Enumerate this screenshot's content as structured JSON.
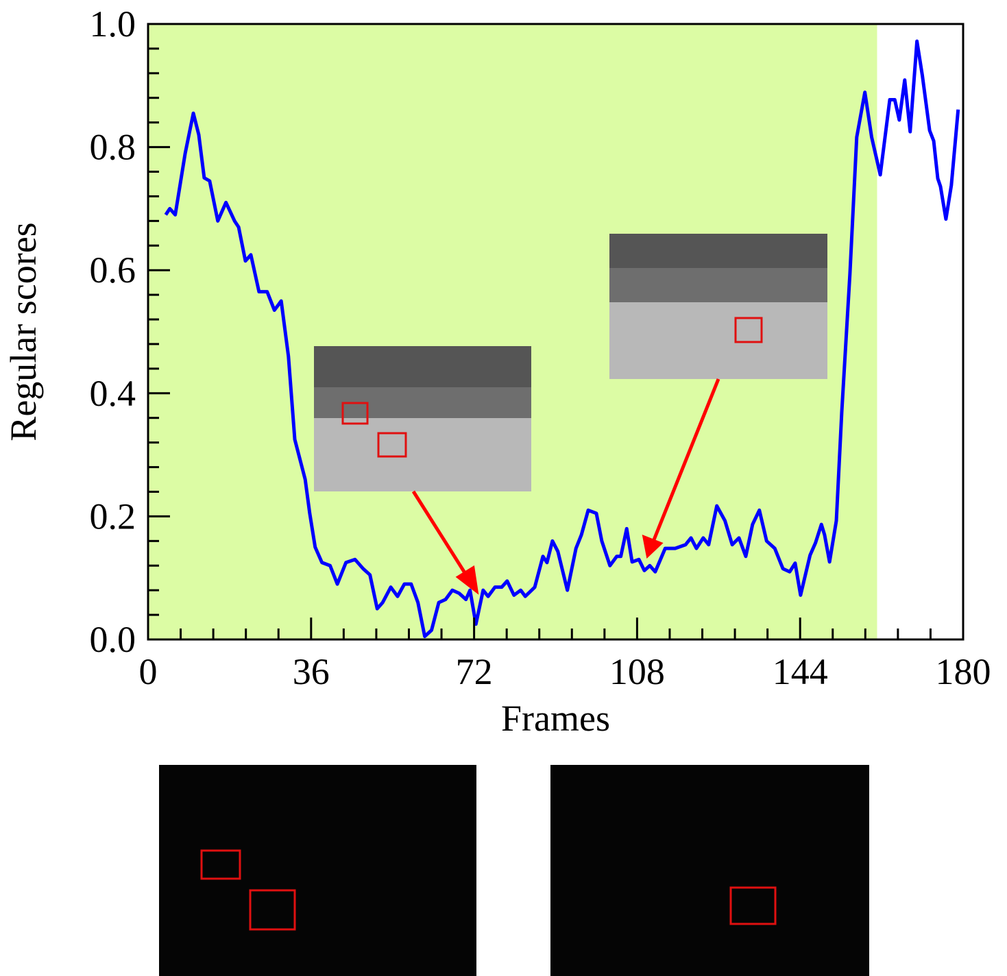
{
  "chart_data": {
    "type": "line",
    "x_label": "Frames",
    "y_label": "Regular scores",
    "x": [
      3.9,
      4.8,
      6,
      8.2,
      10,
      11.2,
      12.4,
      13.6,
      15.4,
      17.2,
      19.1,
      20,
      21.5,
      22.7,
      24.5,
      26.3,
      27.9,
      29.4,
      31,
      32.4,
      34.7,
      35.7,
      36.9,
      38.4,
      40.2,
      41.8,
      43.7,
      45.7,
      47.5,
      49,
      50.6,
      51.8,
      53.6,
      55.1,
      56.6,
      58.1,
      59.6,
      61.1,
      62.6,
      64.2,
      65.7,
      67.2,
      68.7,
      70.2,
      71.1,
      72.4,
      74,
      75.1,
      76.6,
      78.1,
      79.3,
      80.8,
      82.3,
      83.3,
      85.4,
      87.2,
      88.1,
      89.3,
      90.5,
      92.6,
      94.5,
      95.7,
      97.2,
      99,
      100.2,
      102,
      103.5,
      104.4,
      105.7,
      106.9,
      108.4,
      109.6,
      110.8,
      112,
      114.2,
      116.4,
      118.7,
      119.9,
      121.1,
      122.6,
      123.8,
      125.6,
      127.4,
      129,
      130.5,
      132,
      133.5,
      135,
      136.6,
      138.4,
      140.2,
      141.7,
      142.9,
      144.1,
      146.2,
      147.4,
      148.7,
      149.4,
      150.5,
      152,
      153.2,
      155,
      156.5,
      158.3,
      159.8,
      161.7,
      163.8,
      164.9,
      165.9,
      167.1,
      168.3,
      169.8,
      171,
      172.6,
      173.5,
      174.4,
      175,
      176.2,
      177.4,
      178.9
    ],
    "values": [
      0.69,
      0.7,
      0.69,
      0.79,
      0.855,
      0.82,
      0.75,
      0.745,
      0.68,
      0.71,
      0.68,
      0.67,
      0.615,
      0.625,
      0.565,
      0.565,
      0.535,
      0.55,
      0.46,
      0.325,
      0.26,
      0.205,
      0.15,
      0.125,
      0.12,
      0.09,
      0.125,
      0.13,
      0.115,
      0.105,
      0.05,
      0.06,
      0.085,
      0.07,
      0.09,
      0.09,
      0.06,
      0.005,
      0.015,
      0.06,
      0.065,
      0.08,
      0.075,
      0.065,
      0.08,
      0.025,
      0.08,
      0.07,
      0.085,
      0.085,
      0.095,
      0.072,
      0.08,
      0.07,
      0.085,
      0.135,
      0.125,
      0.16,
      0.143,
      0.08,
      0.148,
      0.17,
      0.21,
      0.205,
      0.16,
      0.12,
      0.135,
      0.135,
      0.18,
      0.126,
      0.13,
      0.112,
      0.12,
      0.11,
      0.148,
      0.148,
      0.154,
      0.165,
      0.148,
      0.165,
      0.154,
      0.217,
      0.193,
      0.154,
      0.165,
      0.135,
      0.187,
      0.21,
      0.16,
      0.148,
      0.115,
      0.11,
      0.124,
      0.072,
      0.137,
      0.157,
      0.187,
      0.17,
      0.126,
      0.193,
      0.37,
      0.594,
      0.816,
      0.889,
      0.816,
      0.755,
      0.877,
      0.877,
      0.844,
      0.909,
      0.825,
      0.972,
      0.916,
      0.827,
      0.81,
      0.749,
      0.736,
      0.683,
      0.738,
      0.861
    ],
    "line_color": "#0000ff",
    "highlight": {
      "xlim": [
        0,
        161
      ],
      "color": "#dcfca4"
    },
    "xlim": [
      0,
      180
    ],
    "xticks": [
      0,
      36,
      72,
      108,
      144,
      180
    ],
    "xminorticks": [
      7.2,
      14.4,
      21.6,
      28.8,
      43.2,
      50.4,
      57.6,
      64.8,
      79.2,
      86.4,
      93.6,
      100.8,
      115.2,
      122.4,
      129.6,
      136.8,
      151.2,
      158.4,
      165.6,
      172.8
    ],
    "ylim": [
      0,
      1
    ],
    "yticks": [
      {
        "value": 0,
        "label": "0.0"
      },
      0.2,
      0.4,
      0.6,
      0.8,
      {
        "value": 1,
        "label": "1.0"
      }
    ],
    "yminorticks": [
      0.04,
      0.08,
      0.12,
      0.16,
      0.24,
      0.28,
      0.32,
      0.36,
      0.44,
      0.48,
      0.52,
      0.56,
      0.64,
      0.68,
      0.72,
      0.76,
      0.84,
      0.88,
      0.92,
      0.96
    ]
  }
}
